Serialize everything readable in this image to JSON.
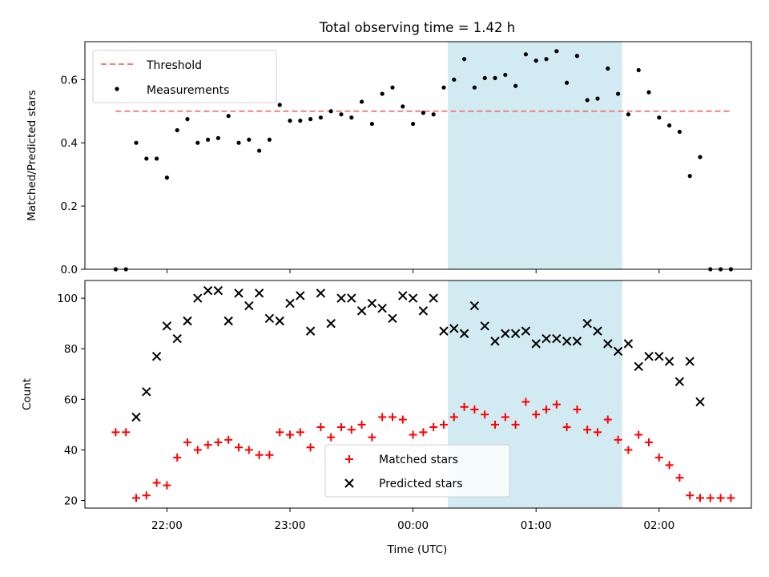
{
  "title": "Total observing time = 1.42 h",
  "colors": {
    "shade": "#add8e6",
    "threshold": "#f08080",
    "measurement": "#000000",
    "matched": "#ff0000",
    "predicted": "#000000"
  },
  "chart_data": [
    {
      "type": "scatter",
      "panel": "top",
      "ylabel": "Matched/Predicted stars",
      "ylim": [
        0,
        0.72
      ],
      "yticks": [
        0.0,
        0.2,
        0.4,
        0.6
      ],
      "ytick_labels": [
        "0.0",
        "0.2",
        "0.4",
        "0.6"
      ],
      "legend_position": "upper-left",
      "threshold": {
        "name": "Threshold",
        "value": 0.5,
        "x_range": [
          "21:35",
          "02:35"
        ]
      },
      "highlight": {
        "x_range": [
          "00:17",
          "01:42"
        ]
      },
      "series": [
        {
          "name": "Measurements",
          "x": [
            "21:35",
            "21:40",
            "21:45",
            "21:50",
            "21:55",
            "22:00",
            "22:05",
            "22:10",
            "22:15",
            "22:20",
            "22:25",
            "22:30",
            "22:35",
            "22:40",
            "22:45",
            "22:50",
            "22:55",
            "23:00",
            "23:05",
            "23:10",
            "23:15",
            "23:20",
            "23:25",
            "23:30",
            "23:35",
            "23:40",
            "23:45",
            "23:50",
            "23:55",
            "00:00",
            "00:05",
            "00:10",
            "00:15",
            "00:20",
            "00:25",
            "00:30",
            "00:35",
            "00:40",
            "00:45",
            "00:50",
            "00:55",
            "01:00",
            "01:05",
            "01:10",
            "01:15",
            "01:20",
            "01:25",
            "01:30",
            "01:35",
            "01:40",
            "01:45",
            "01:50",
            "01:55",
            "02:00",
            "02:05",
            "02:10",
            "02:15",
            "02:20",
            "02:25",
            "02:30",
            "02:35"
          ],
          "values": [
            0.0,
            0.0,
            0.4,
            0.35,
            0.35,
            0.29,
            0.44,
            0.475,
            0.4,
            0.41,
            0.415,
            0.485,
            0.4,
            0.41,
            0.375,
            0.41,
            0.52,
            0.47,
            0.47,
            0.475,
            0.48,
            0.5,
            0.49,
            0.48,
            0.53,
            0.46,
            0.555,
            0.575,
            0.515,
            0.46,
            0.495,
            0.49,
            0.575,
            0.6,
            0.665,
            0.575,
            0.605,
            0.605,
            0.615,
            0.58,
            0.68,
            0.66,
            0.665,
            0.69,
            0.59,
            0.675,
            0.535,
            0.54,
            0.635,
            0.555,
            0.49,
            0.63,
            0.56,
            0.48,
            0.455,
            0.435,
            0.295,
            0.355,
            0.0,
            0.0,
            0.0
          ]
        }
      ]
    },
    {
      "type": "scatter",
      "panel": "bottom",
      "xlabel": "Time (UTC)",
      "ylabel": "Count",
      "ylim": [
        17,
        107
      ],
      "yticks": [
        20,
        40,
        60,
        80,
        100
      ],
      "ytick_labels": [
        "20",
        "40",
        "60",
        "80",
        "100"
      ],
      "x_domain": [
        "21:20",
        "02:45"
      ],
      "xticks": [
        "22:00",
        "23:00",
        "00:00",
        "01:00",
        "02:00"
      ],
      "xtick_labels": [
        "22:00",
        "23:00",
        "00:00",
        "01:00",
        "02:00"
      ],
      "legend_position": "lower-center",
      "series": [
        {
          "name": "Matched stars",
          "x": [
            "21:35",
            "21:40",
            "21:45",
            "21:50",
            "21:55",
            "22:00",
            "22:05",
            "22:10",
            "22:15",
            "22:20",
            "22:25",
            "22:30",
            "22:35",
            "22:40",
            "22:45",
            "22:50",
            "22:55",
            "23:00",
            "23:05",
            "23:10",
            "23:15",
            "23:20",
            "23:25",
            "23:30",
            "23:35",
            "23:40",
            "23:45",
            "23:50",
            "23:55",
            "00:00",
            "00:05",
            "00:10",
            "00:15",
            "00:20",
            "00:25",
            "00:30",
            "00:35",
            "00:40",
            "00:45",
            "00:50",
            "00:55",
            "01:00",
            "01:05",
            "01:10",
            "01:15",
            "01:20",
            "01:25",
            "01:30",
            "01:35",
            "01:40",
            "01:45",
            "01:50",
            "01:55",
            "02:00",
            "02:05",
            "02:10",
            "02:15",
            "02:20",
            "02:25",
            "02:30",
            "02:35"
          ],
          "values": [
            47,
            47,
            21,
            22,
            27,
            26,
            37,
            43,
            40,
            42,
            43,
            44,
            41,
            40,
            38,
            38,
            47,
            46,
            47,
            41,
            49,
            45,
            49,
            48,
            50,
            45,
            53,
            53,
            52,
            46,
            47,
            49,
            50,
            53,
            57,
            56,
            54,
            50,
            53,
            50,
            59,
            54,
            56,
            58,
            49,
            56,
            48,
            47,
            52,
            44,
            40,
            46,
            43,
            37,
            34,
            29,
            22,
            21,
            21,
            21,
            21
          ]
        },
        {
          "name": "Predicted stars",
          "x": [
            "21:45",
            "21:50",
            "21:55",
            "22:00",
            "22:05",
            "22:10",
            "22:15",
            "22:20",
            "22:25",
            "22:30",
            "22:35",
            "22:40",
            "22:45",
            "22:50",
            "22:55",
            "23:00",
            "23:05",
            "23:10",
            "23:15",
            "23:20",
            "23:25",
            "23:30",
            "23:35",
            "23:40",
            "23:45",
            "23:50",
            "23:55",
            "00:00",
            "00:05",
            "00:10",
            "00:15",
            "00:20",
            "00:25",
            "00:30",
            "00:35",
            "00:40",
            "00:45",
            "00:50",
            "00:55",
            "01:00",
            "01:05",
            "01:10",
            "01:15",
            "01:20",
            "01:25",
            "01:30",
            "01:35",
            "01:40",
            "01:45",
            "01:50",
            "01:55",
            "02:00",
            "02:05",
            "02:10",
            "02:15",
            "02:20"
          ],
          "values": [
            53,
            63,
            77,
            89,
            84,
            91,
            100,
            103,
            103,
            91,
            102,
            97,
            102,
            92,
            91,
            98,
            101,
            87,
            102,
            90,
            100,
            100,
            95,
            98,
            96,
            92,
            101,
            100,
            95,
            100,
            87,
            88,
            86,
            97,
            89,
            83,
            86,
            86,
            87,
            82,
            84,
            84,
            83,
            83,
            90,
            87,
            82,
            79,
            82,
            73,
            77,
            77,
            75,
            67,
            75,
            59
          ]
        }
      ]
    }
  ]
}
